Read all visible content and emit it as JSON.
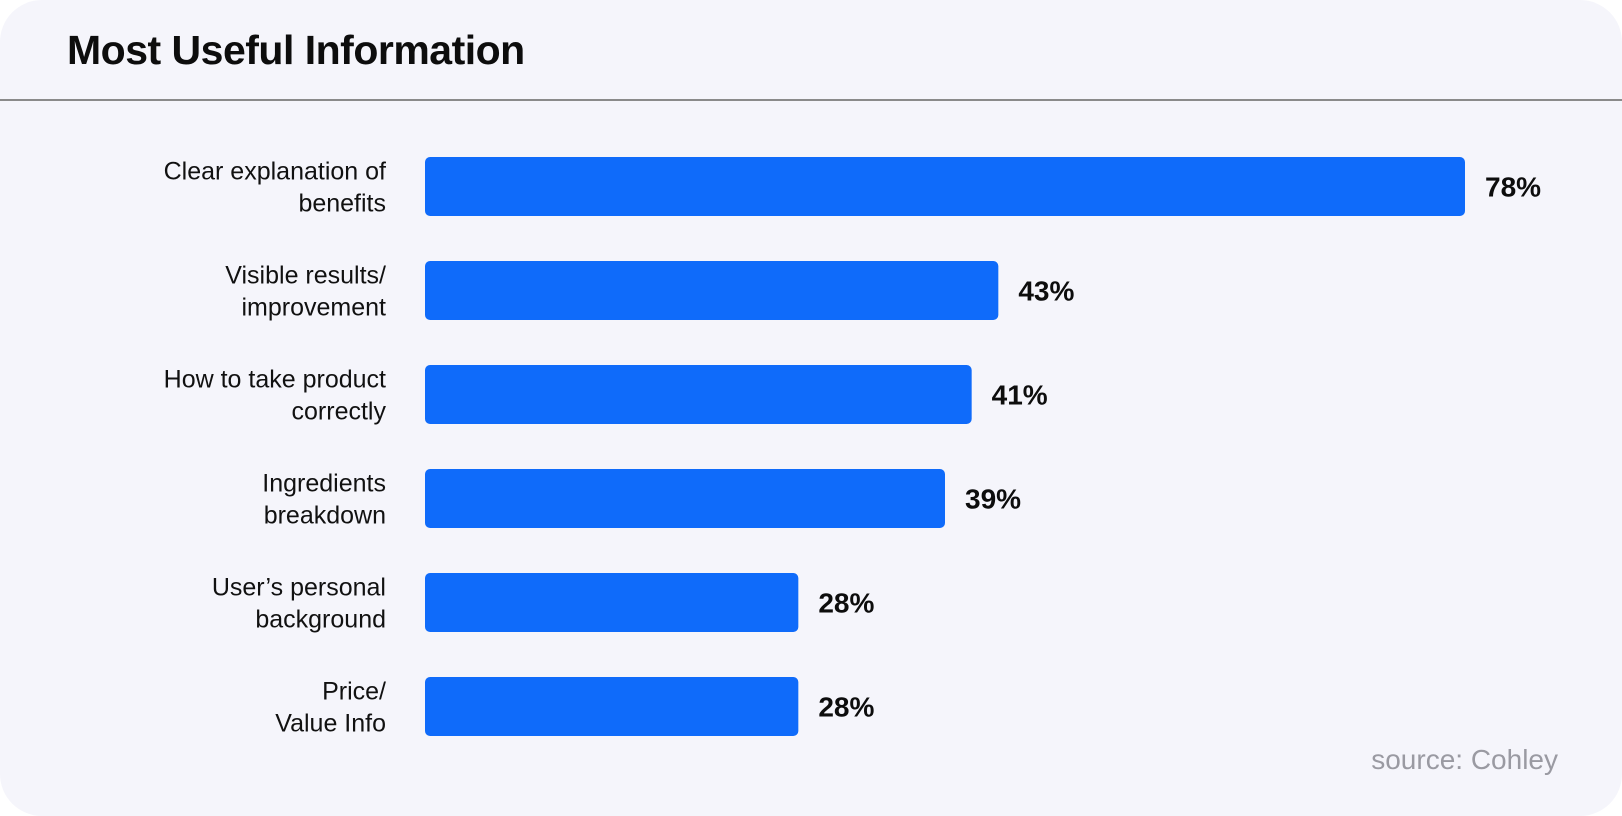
{
  "chart_data": {
    "type": "bar",
    "orientation": "horizontal",
    "title": "Most Useful Information",
    "categories": [
      [
        "Clear explanation of",
        "benefits"
      ],
      [
        "Visible results/",
        "improvement"
      ],
      [
        "How to take product",
        "correctly"
      ],
      [
        "Ingredients",
        "breakdown"
      ],
      [
        "User’s personal",
        "background"
      ],
      [
        "Price/",
        "Value Info"
      ]
    ],
    "values": [
      78,
      43,
      41,
      39,
      28,
      28
    ],
    "value_labels": [
      "78%",
      "43%",
      "41%",
      "39%",
      "28%",
      "28%"
    ],
    "xlim": [
      0,
      78
    ],
    "grid": false,
    "bar_color": "#0f6bfa",
    "source": "source: Cohley"
  }
}
